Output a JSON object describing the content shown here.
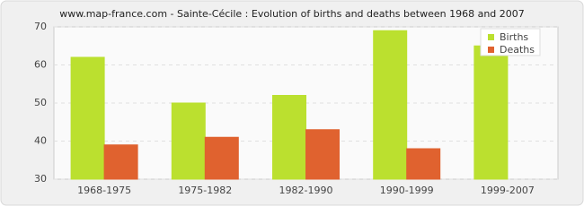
{
  "chart_data": {
    "type": "bar",
    "title": "www.map-france.com - Sainte-Cécile : Evolution of births and deaths between 1968 and 2007",
    "categories": [
      "1968-1975",
      "1975-1982",
      "1982-1990",
      "1990-1999",
      "1999-2007"
    ],
    "series": [
      {
        "name": "Births",
        "color": "#bbe02f",
        "values": [
          62,
          50,
          52,
          69,
          65
        ]
      },
      {
        "name": "Deaths",
        "color": "#e0622f",
        "values": [
          39,
          41,
          43,
          38,
          30
        ]
      }
    ],
    "ylim": [
      30,
      70
    ],
    "yticks": [
      30,
      40,
      50,
      60,
      70
    ],
    "grid": true,
    "legend": "top-right"
  }
}
